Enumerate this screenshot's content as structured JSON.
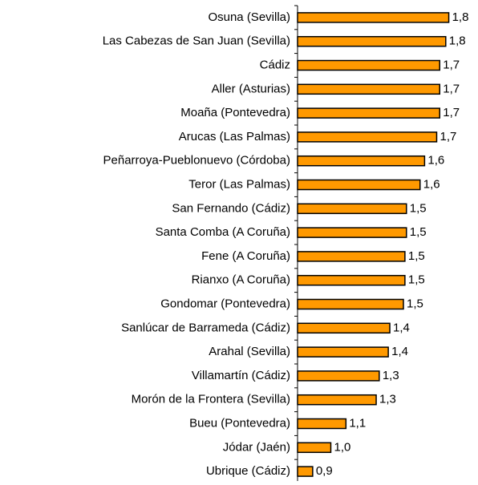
{
  "chart_data": {
    "type": "hbar",
    "categories": [
      "Osuna (Sevilla)",
      "Las Cabezas de San Juan (Sevilla)",
      "Cádiz",
      "Aller (Asturias)",
      "Moaña (Pontevedra)",
      "Arucas (Las Palmas)",
      "Peñarroya-Pueblonuevo (Córdoba)",
      "Teror (Las Palmas)",
      "San Fernando (Cádiz)",
      "Santa Comba (A Coruña)",
      "Fene (A Coruña)",
      "Rianxo (A Coruña)",
      "Gondomar (Pontevedra)",
      "Sanlúcar de Barrameda (Cádiz)",
      "Arahal (Sevilla)",
      "Villamartín (Cádiz)",
      "Morón de la Frontera (Sevilla)",
      "Bueu (Pontevedra)",
      "Jódar (Jaén)",
      "Ubrique (Cádiz)"
    ],
    "values": [
      1.8,
      1.78,
      1.74,
      1.74,
      1.74,
      1.72,
      1.64,
      1.61,
      1.52,
      1.52,
      1.51,
      1.51,
      1.5,
      1.41,
      1.4,
      1.34,
      1.32,
      1.12,
      1.02,
      0.9
    ],
    "value_labels": [
      "1,8",
      "1,8",
      "1,7",
      "1,7",
      "1,7",
      "1,7",
      "1,6",
      "1,6",
      "1,5",
      "1,5",
      "1,5",
      "1,5",
      "1,5",
      "1,4",
      "1,4",
      "1,3",
      "1,3",
      "1,1",
      "1,0",
      "0,9"
    ],
    "color": "#ff9900",
    "xlim": [
      0.8,
      1.85
    ]
  }
}
